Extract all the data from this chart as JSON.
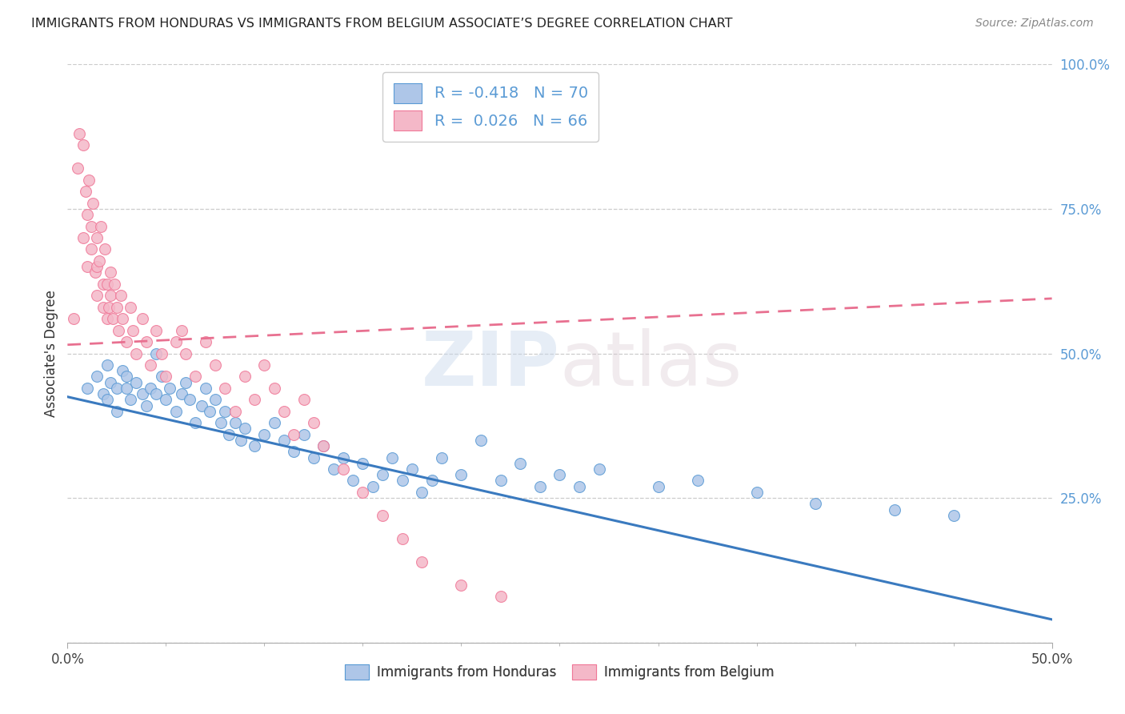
{
  "title": "IMMIGRANTS FROM HONDURAS VS IMMIGRANTS FROM BELGIUM ASSOCIATE’S DEGREE CORRELATION CHART",
  "source": "Source: ZipAtlas.com",
  "ylabel": "Associate's Degree",
  "xlim": [
    0.0,
    0.5
  ],
  "ylim": [
    0.0,
    1.0
  ],
  "xtick_major": [
    0.0,
    0.5
  ],
  "xtick_minor": [
    0.05,
    0.1,
    0.15,
    0.2,
    0.25,
    0.3,
    0.35,
    0.4,
    0.45
  ],
  "xtick_major_labels": [
    "0.0%",
    "50.0%"
  ],
  "ytick_right_vals": [
    0.0,
    0.25,
    0.5,
    0.75,
    1.0
  ],
  "ytick_right_labels": [
    "",
    "25.0%",
    "50.0%",
    "75.0%",
    "100.0%"
  ],
  "legend_R_values": [
    "-0.418",
    "0.026"
  ],
  "legend_N_values": [
    "70",
    "66"
  ],
  "watermark_zip": "ZIP",
  "watermark_atlas": "atlas",
  "blue_color": "#5b9bd5",
  "pink_color": "#f07898",
  "scatter_blue_color": "#aec6e8",
  "scatter_pink_color": "#f4b8c8",
  "trendline_blue_color": "#3a7abf",
  "trendline_pink_color": "#e87090",
  "blue_series_x": [
    0.01,
    0.015,
    0.018,
    0.02,
    0.02,
    0.022,
    0.025,
    0.025,
    0.028,
    0.03,
    0.03,
    0.032,
    0.035,
    0.038,
    0.04,
    0.042,
    0.045,
    0.045,
    0.048,
    0.05,
    0.052,
    0.055,
    0.058,
    0.06,
    0.062,
    0.065,
    0.068,
    0.07,
    0.072,
    0.075,
    0.078,
    0.08,
    0.082,
    0.085,
    0.088,
    0.09,
    0.095,
    0.1,
    0.105,
    0.11,
    0.115,
    0.12,
    0.125,
    0.13,
    0.135,
    0.14,
    0.145,
    0.15,
    0.155,
    0.16,
    0.165,
    0.17,
    0.175,
    0.18,
    0.185,
    0.19,
    0.2,
    0.21,
    0.22,
    0.23,
    0.24,
    0.25,
    0.26,
    0.27,
    0.3,
    0.32,
    0.35,
    0.38,
    0.42,
    0.45
  ],
  "blue_series_y": [
    0.44,
    0.46,
    0.43,
    0.48,
    0.42,
    0.45,
    0.44,
    0.4,
    0.47,
    0.46,
    0.44,
    0.42,
    0.45,
    0.43,
    0.41,
    0.44,
    0.5,
    0.43,
    0.46,
    0.42,
    0.44,
    0.4,
    0.43,
    0.45,
    0.42,
    0.38,
    0.41,
    0.44,
    0.4,
    0.42,
    0.38,
    0.4,
    0.36,
    0.38,
    0.35,
    0.37,
    0.34,
    0.36,
    0.38,
    0.35,
    0.33,
    0.36,
    0.32,
    0.34,
    0.3,
    0.32,
    0.28,
    0.31,
    0.27,
    0.29,
    0.32,
    0.28,
    0.3,
    0.26,
    0.28,
    0.32,
    0.29,
    0.35,
    0.28,
    0.31,
    0.27,
    0.29,
    0.27,
    0.3,
    0.27,
    0.28,
    0.26,
    0.24,
    0.23,
    0.22
  ],
  "pink_series_x": [
    0.003,
    0.005,
    0.006,
    0.008,
    0.008,
    0.009,
    0.01,
    0.01,
    0.011,
    0.012,
    0.012,
    0.013,
    0.014,
    0.015,
    0.015,
    0.015,
    0.016,
    0.017,
    0.018,
    0.018,
    0.019,
    0.02,
    0.02,
    0.021,
    0.022,
    0.022,
    0.023,
    0.024,
    0.025,
    0.026,
    0.027,
    0.028,
    0.03,
    0.032,
    0.033,
    0.035,
    0.038,
    0.04,
    0.042,
    0.045,
    0.048,
    0.05,
    0.055,
    0.058,
    0.06,
    0.065,
    0.07,
    0.075,
    0.08,
    0.085,
    0.09,
    0.095,
    0.1,
    0.105,
    0.11,
    0.115,
    0.12,
    0.125,
    0.13,
    0.14,
    0.15,
    0.16,
    0.17,
    0.18,
    0.2,
    0.22
  ],
  "pink_series_y": [
    0.56,
    0.82,
    0.88,
    0.7,
    0.86,
    0.78,
    0.74,
    0.65,
    0.8,
    0.68,
    0.72,
    0.76,
    0.64,
    0.7,
    0.65,
    0.6,
    0.66,
    0.72,
    0.62,
    0.58,
    0.68,
    0.56,
    0.62,
    0.58,
    0.64,
    0.6,
    0.56,
    0.62,
    0.58,
    0.54,
    0.6,
    0.56,
    0.52,
    0.58,
    0.54,
    0.5,
    0.56,
    0.52,
    0.48,
    0.54,
    0.5,
    0.46,
    0.52,
    0.54,
    0.5,
    0.46,
    0.52,
    0.48,
    0.44,
    0.4,
    0.46,
    0.42,
    0.48,
    0.44,
    0.4,
    0.36,
    0.42,
    0.38,
    0.34,
    0.3,
    0.26,
    0.22,
    0.18,
    0.14,
    0.1,
    0.08
  ],
  "blue_trendline_x": [
    0.0,
    0.5
  ],
  "blue_trendline_y": [
    0.425,
    0.04
  ],
  "pink_trendline_x": [
    0.0,
    0.5
  ],
  "pink_trendline_y": [
    0.515,
    0.595
  ],
  "grid_color": "#cccccc",
  "spine_color": "#aaaaaa"
}
